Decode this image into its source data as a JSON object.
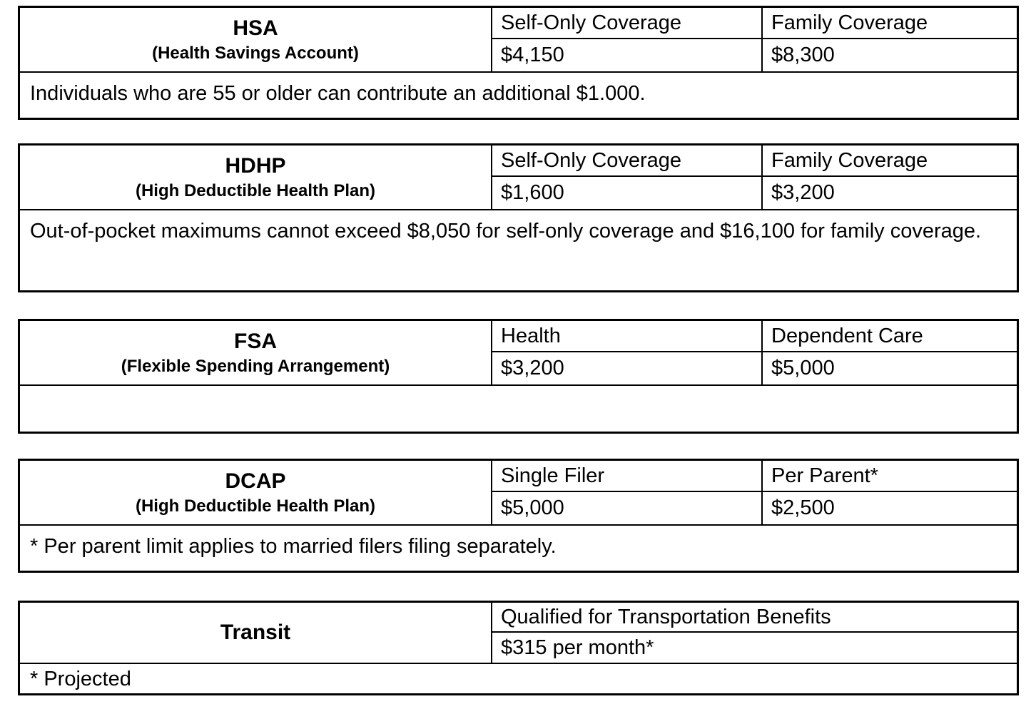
{
  "document": {
    "colors": {
      "background": "#ffffff",
      "border": "#000000",
      "text": "#000000"
    },
    "tables": [
      {
        "acronym": "HSA",
        "full_name": "(Health Savings Account)",
        "columns": [
          {
            "header": "Self-Only Coverage",
            "value": "$4,150"
          },
          {
            "header": "Family Coverage",
            "value": "$8,300"
          }
        ],
        "note": "Individuals who are 55 or older can contribute an additional $1.000."
      },
      {
        "acronym": "HDHP",
        "full_name": "(High Deductible Health Plan)",
        "columns": [
          {
            "header": "Self-Only Coverage",
            "value": "$1,600"
          },
          {
            "header": "Family Coverage",
            "value": "$3,200"
          }
        ],
        "note": "Out-of-pocket maximums cannot exceed $8,050 for self-only coverage and $16,100 for family coverage."
      },
      {
        "acronym": "FSA",
        "full_name": "(Flexible Spending Arrangement)",
        "columns": [
          {
            "header": "Health",
            "value": "$3,200"
          },
          {
            "header": "Dependent Care",
            "value": "$5,000"
          }
        ],
        "note": ""
      },
      {
        "acronym": "DCAP",
        "full_name": "(High Deductible Health Plan)",
        "columns": [
          {
            "header": "Single Filer",
            "value": "$5,000"
          },
          {
            "header": "Per Parent*",
            "value": "$2,500"
          }
        ],
        "note": "* Per parent limit applies to married filers filing separately."
      },
      {
        "acronym": "Transit",
        "full_name": "",
        "columns": [
          {
            "header": "Qualified for Transportation Benefits",
            "value": "$315 per month*"
          }
        ],
        "note": "* Projected"
      }
    ]
  }
}
